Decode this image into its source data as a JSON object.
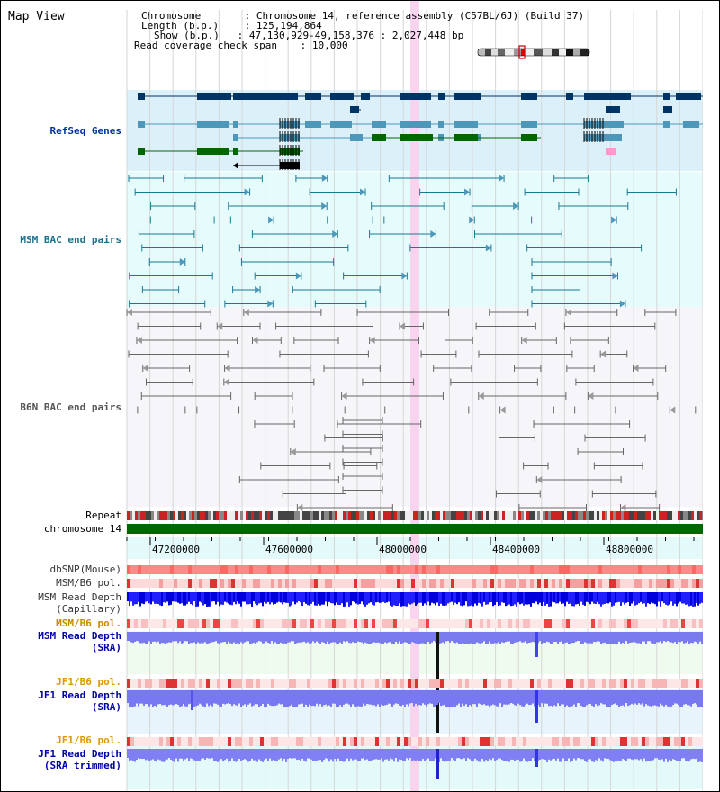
{
  "title": "Map View",
  "info": {
    "chromosome_key": "Chromosome",
    "chromosome_val": "Chromosome 14, reference assembly (C57BL/6J) (Build 37)",
    "length_key": "Length (b.p.)",
    "length_val": "125,194,864",
    "show_key": "Show (b.p.)",
    "show_val": "47,130,929-49,158,376 : 2,027,448 bp",
    "span_key": "Read coverage check span",
    "span_val": "10,000"
  },
  "tracks": {
    "refseq": "RefSeq Genes",
    "msm_bac": "MSM BAC end pairs",
    "b6n_bac": "B6N BAC end pairs",
    "repeat": "Repeat",
    "chromosome": "chromosome 14",
    "dbsnp": "dbSNP(Mouse)",
    "msm_b6_pol_1": "MSM/B6 pol.",
    "msm_read_cap_1": "MSM Read Depth",
    "msm_read_cap_2": "(Capillary)",
    "msm_b6_pol_2": "MSM/B6 pol.",
    "msm_read_sra_1": "MSM Read Depth",
    "msm_read_sra_2": "(SRA)",
    "jf1_b6_pol_1": "JF1/B6 pol.",
    "jf1_read_sra_1": "JF1 Read Depth",
    "jf1_read_sra_2": "(SRA)",
    "jf1_b6_pol_2": "JF1/B6 pol.",
    "jf1_read_trim_1": "JF1 Read Depth",
    "jf1_read_trim_2": "(SRA trimmed)"
  },
  "axis_ticks": [
    "47200000",
    "47600000",
    "48000000",
    "48400000",
    "48800000"
  ],
  "colors": {
    "refseq_bg": "#dcf0fa",
    "navy": "#003366",
    "steel": "#4d97bb",
    "green": "#006600",
    "pink": "#ff99cc",
    "teal": "#1a7a96",
    "gray": "#666666",
    "highlight": "#f8d4ee",
    "msm_color": "#0000aa",
    "pol_color": "#cc6600",
    "jf_color": "#ff9900",
    "chrom_green": "#006600"
  }
}
